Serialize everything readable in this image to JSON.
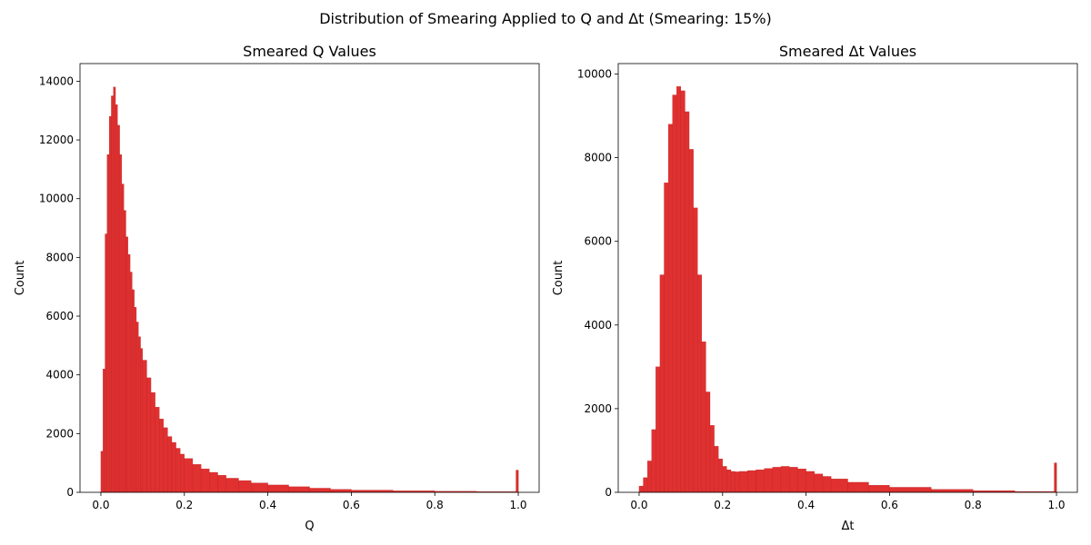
{
  "suptitle": "Distribution of Smearing Applied to Q and Δt (Smearing: 15%)",
  "colors": {
    "bar_fill": "#e03030",
    "bar_edge": "#b82020",
    "axis": "#000000",
    "background": "#ffffff"
  },
  "chart_data": [
    {
      "type": "bar",
      "title": "Smeared Q Values",
      "xlabel": "Q",
      "ylabel": "Count",
      "xlim": [
        -0.05,
        1.05
      ],
      "ylim": [
        0,
        14600
      ],
      "xticks": [
        0.0,
        0.2,
        0.4,
        0.6,
        0.8,
        1.0
      ],
      "xtick_labels": [
        "0.0",
        "0.2",
        "0.4",
        "0.6",
        "0.8",
        "1.0"
      ],
      "yticks": [
        0,
        2000,
        4000,
        6000,
        8000,
        10000,
        12000,
        14000
      ],
      "ytick_labels": [
        "0",
        "2000",
        "4000",
        "6000",
        "8000",
        "10000",
        "12000",
        "14000"
      ],
      "grid": false,
      "bin_width": 0.005,
      "bins_start": [
        0.0,
        0.005,
        0.01,
        0.015,
        0.02,
        0.025,
        0.03,
        0.035,
        0.04,
        0.045,
        0.05,
        0.055,
        0.06,
        0.065,
        0.07,
        0.075,
        0.08,
        0.085,
        0.09,
        0.095,
        0.1,
        0.11,
        0.12,
        0.13,
        0.14,
        0.15,
        0.16,
        0.17,
        0.18,
        0.19,
        0.2,
        0.22,
        0.24,
        0.26,
        0.28,
        0.3,
        0.33,
        0.36,
        0.4,
        0.45,
        0.5,
        0.55,
        0.6,
        0.7,
        0.8,
        0.9,
        0.995
      ],
      "counts": [
        1400,
        4200,
        8800,
        11500,
        12800,
        13500,
        13800,
        13200,
        12500,
        11500,
        10500,
        9600,
        8700,
        8100,
        7500,
        6900,
        6300,
        5800,
        5300,
        4900,
        4500,
        3900,
        3400,
        2900,
        2500,
        2200,
        1900,
        1700,
        1500,
        1300,
        1150,
        950,
        800,
        680,
        580,
        480,
        400,
        320,
        250,
        190,
        140,
        100,
        75,
        50,
        35,
        25,
        750
      ]
    },
    {
      "type": "bar",
      "title": "Smeared Δt Values",
      "xlabel": "Δt",
      "ylabel": "Count",
      "xlim": [
        -0.05,
        1.05
      ],
      "ylim": [
        0,
        10250
      ],
      "xticks": [
        0.0,
        0.2,
        0.4,
        0.6,
        0.8,
        1.0
      ],
      "xtick_labels": [
        "0.0",
        "0.2",
        "0.4",
        "0.6",
        "0.8",
        "1.0"
      ],
      "yticks": [
        0,
        2000,
        4000,
        6000,
        8000,
        10000
      ],
      "ytick_labels": [
        "0",
        "2000",
        "4000",
        "6000",
        "8000",
        "10000"
      ],
      "grid": false,
      "bin_width": 0.005,
      "bins_start": [
        0.0,
        0.01,
        0.02,
        0.03,
        0.04,
        0.05,
        0.06,
        0.07,
        0.08,
        0.09,
        0.1,
        0.11,
        0.12,
        0.13,
        0.14,
        0.15,
        0.16,
        0.17,
        0.18,
        0.19,
        0.2,
        0.21,
        0.22,
        0.23,
        0.24,
        0.26,
        0.28,
        0.3,
        0.32,
        0.34,
        0.36,
        0.38,
        0.4,
        0.42,
        0.44,
        0.46,
        0.5,
        0.55,
        0.6,
        0.7,
        0.8,
        0.9,
        0.995
      ],
      "counts": [
        150,
        350,
        750,
        1500,
        3000,
        5200,
        7400,
        8800,
        9500,
        9700,
        9600,
        9100,
        8200,
        6800,
        5200,
        3600,
        2400,
        1600,
        1100,
        800,
        620,
        540,
        500,
        490,
        500,
        520,
        540,
        570,
        600,
        620,
        600,
        560,
        500,
        440,
        380,
        320,
        240,
        170,
        120,
        70,
        40,
        20,
        700
      ]
    }
  ]
}
